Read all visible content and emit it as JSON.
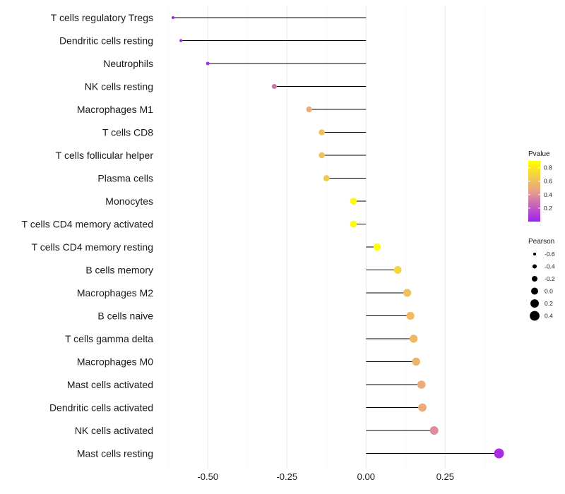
{
  "chart_data": {
    "type": "lollipop",
    "title": "",
    "xlabel": "",
    "ylabel": "",
    "xlim": [
      -0.63,
      0.45
    ],
    "x_ticks": [
      -0.5,
      -0.25,
      0.0,
      0.25
    ],
    "x_tick_labels": [
      "-0.50",
      "-0.25",
      "0.00",
      "0.25"
    ],
    "grid": true,
    "legend_position": "right",
    "points": [
      {
        "label": "T cells regulatory  Tregs",
        "pearson": -0.61,
        "pvalue": 0.0
      },
      {
        "label": "Dendritic cells resting",
        "pearson": -0.585,
        "pvalue": 0.02
      },
      {
        "label": "Neutrophils",
        "pearson": -0.5,
        "pvalue": 0.05
      },
      {
        "label": "NK cells resting",
        "pearson": -0.29,
        "pvalue": 0.3
      },
      {
        "label": "Macrophages M1",
        "pearson": -0.18,
        "pvalue": 0.5
      },
      {
        "label": "T cells CD8",
        "pearson": -0.14,
        "pvalue": 0.6
      },
      {
        "label": "T cells follicular helper",
        "pearson": -0.14,
        "pvalue": 0.6
      },
      {
        "label": "Plasma cells",
        "pearson": -0.125,
        "pvalue": 0.65
      },
      {
        "label": "Monocytes",
        "pearson": -0.04,
        "pvalue": 0.88
      },
      {
        "label": "T cells CD4 memory activated",
        "pearson": -0.04,
        "pvalue": 0.88
      },
      {
        "label": "T cells CD4 memory resting",
        "pearson": 0.035,
        "pvalue": 0.9
      },
      {
        "label": "B cells memory",
        "pearson": 0.1,
        "pvalue": 0.7
      },
      {
        "label": "Macrophages M2",
        "pearson": 0.13,
        "pvalue": 0.6
      },
      {
        "label": "B cells naive",
        "pearson": 0.14,
        "pvalue": 0.58
      },
      {
        "label": "T cells gamma delta",
        "pearson": 0.15,
        "pvalue": 0.56
      },
      {
        "label": "Macrophages M0",
        "pearson": 0.158,
        "pvalue": 0.55
      },
      {
        "label": "Mast cells activated",
        "pearson": 0.175,
        "pvalue": 0.5
      },
      {
        "label": "Dendritic cells activated",
        "pearson": 0.178,
        "pvalue": 0.5
      },
      {
        "label": "NK cells activated",
        "pearson": 0.215,
        "pvalue": 0.38
      },
      {
        "label": "Mast cells resting",
        "pearson": 0.42,
        "pvalue": 0.05
      }
    ],
    "legend_pvalue": {
      "title": "Pvalue",
      "ticks": [
        0.2,
        0.4,
        0.6,
        0.8
      ],
      "tick_labels": [
        "0.2",
        "0.4",
        "0.6",
        "0.8"
      ],
      "range": [
        0.0,
        0.9
      ],
      "color_low": "#a020f0",
      "color_mid": "#e8a08a",
      "color_high": "#ffff00"
    },
    "legend_pearson": {
      "title": "Pearson",
      "values": [
        -0.6,
        -0.4,
        -0.2,
        0.0,
        0.2,
        0.4
      ],
      "labels": [
        "-0.6",
        "-0.4",
        "-0.2",
        "0.0",
        "0.2",
        "0.4"
      ]
    }
  }
}
